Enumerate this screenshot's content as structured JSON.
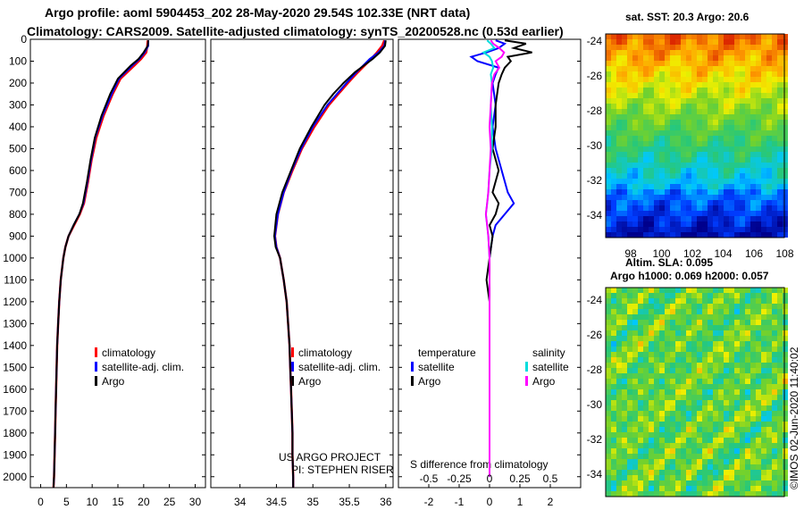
{
  "header": {
    "line1": "Argo profile: aoml 5904453_202 28-May-2020 29.54S 102.33E (NRT data)",
    "line2": "Climatology: CARS2009. Satellite-adjusted climatology: synTS_20200528.nc (0.53d earlier)"
  },
  "colors": {
    "climatology": "#ff0000",
    "satellite": "#0000ff",
    "argo": "#000000",
    "sal_satellite": "#00dddd",
    "sal_argo": "#ff00ff"
  },
  "chart_data": [
    {
      "type": "line",
      "name": "temperature-profile",
      "ylim": [
        2050,
        0
      ],
      "yticks": [
        0,
        100,
        200,
        300,
        400,
        500,
        600,
        700,
        800,
        900,
        1000,
        1100,
        1200,
        1300,
        1400,
        1500,
        1600,
        1700,
        1800,
        1900,
        2000
      ],
      "xlim": [
        -2,
        32
      ],
      "xticks": [
        0,
        5,
        10,
        15,
        20,
        25,
        30
      ],
      "depth": [
        5,
        30,
        60,
        90,
        120,
        180,
        250,
        350,
        450,
        550,
        650,
        750,
        800,
        850,
        900,
        950,
        1000,
        1100,
        1200,
        1300,
        1400,
        1500,
        1600,
        1700,
        1800,
        1900,
        2000,
        2050
      ],
      "series": [
        {
          "name": "climatology",
          "values": [
            20.8,
            20.7,
            20.5,
            19.5,
            18.2,
            15.5,
            14.0,
            12.2,
            10.8,
            9.9,
            9.2,
            8.4,
            7.6,
            6.5,
            5.4,
            4.8,
            4.4,
            3.9,
            3.6,
            3.4,
            3.2,
            3.1,
            3.0,
            2.9,
            2.8,
            2.7,
            2.6,
            2.5
          ]
        },
        {
          "name": "satellite-adj. clim.",
          "values": [
            20.9,
            20.9,
            20.2,
            19.2,
            17.8,
            15.2,
            13.8,
            12.0,
            10.6,
            9.8,
            9.1,
            8.3,
            7.5,
            6.4,
            5.4,
            4.8,
            4.4,
            3.9,
            3.6,
            3.4,
            3.2,
            3.1,
            3.0,
            2.9,
            2.8,
            2.7,
            2.6,
            2.5
          ]
        },
        {
          "name": "Argo",
          "values": [
            20.9,
            20.8,
            20.0,
            19.0,
            17.5,
            15.0,
            13.5,
            11.8,
            10.5,
            9.7,
            9.0,
            8.2,
            7.5,
            6.4,
            5.4,
            4.8,
            4.4,
            3.9,
            3.6,
            3.4,
            3.2,
            3.1,
            3.0,
            2.9,
            2.8,
            2.7,
            2.6,
            2.5
          ]
        }
      ],
      "legend": [
        "climatology",
        "satellite-adj. clim.",
        "Argo"
      ]
    },
    {
      "type": "line",
      "name": "salinity-profile",
      "ylim": [
        2050,
        0
      ],
      "xlim": [
        33.6,
        36.1
      ],
      "xticks": [
        "34",
        "34.5",
        "35",
        "35.5",
        "36"
      ],
      "depth": [
        5,
        30,
        60,
        90,
        150,
        200,
        250,
        300,
        400,
        500,
        600,
        700,
        800,
        900,
        950,
        1000,
        1100,
        1200,
        1300,
        1400,
        1500,
        1600,
        1700,
        1800,
        1900,
        2000,
        2050
      ],
      "series": [
        {
          "name": "climatology",
          "values": [
            35.98,
            35.95,
            35.88,
            35.8,
            35.62,
            35.48,
            35.35,
            35.22,
            35.02,
            34.85,
            34.72,
            34.6,
            34.52,
            34.48,
            34.5,
            34.55,
            34.6,
            34.64,
            34.66,
            34.68,
            34.69,
            34.7,
            34.71,
            34.72,
            34.72,
            34.73,
            34.73
          ]
        },
        {
          "name": "satellite-adj. clim.",
          "values": [
            35.99,
            35.98,
            35.9,
            35.78,
            35.6,
            35.46,
            35.33,
            35.2,
            35.0,
            34.84,
            34.71,
            34.6,
            34.52,
            34.48,
            34.5,
            34.55,
            34.6,
            34.64,
            34.66,
            34.68,
            34.69,
            34.7,
            34.71,
            34.72,
            34.72,
            34.73,
            34.73
          ]
        },
        {
          "name": "Argo",
          "values": [
            36.0,
            35.99,
            35.92,
            35.82,
            35.58,
            35.42,
            35.28,
            35.16,
            34.98,
            34.82,
            34.7,
            34.58,
            34.5,
            34.47,
            34.49,
            34.55,
            34.6,
            34.64,
            34.66,
            34.68,
            34.69,
            34.7,
            34.71,
            34.72,
            34.72,
            34.73,
            34.73
          ]
        }
      ],
      "legend": [
        "climatology",
        "satellite-adj. clim.",
        "Argo"
      ],
      "annotation": [
        "US ARGO PROJECT",
        "PI: STEPHEN RISER"
      ]
    },
    {
      "type": "line",
      "name": "difference-from-climatology",
      "ylim": [
        2050,
        0
      ],
      "xlim_temperature": [
        -3,
        3
      ],
      "xticks_temperature": [
        "-2",
        "-1",
        "0",
        "1",
        "2"
      ],
      "xticks_salinity": [
        "-0.5",
        "-0.25",
        "0",
        "0.25",
        "0.5"
      ],
      "xlabel": "S difference from climatology",
      "depth": [
        5,
        20,
        40,
        60,
        80,
        100,
        130,
        160,
        200,
        300,
        400,
        500,
        600,
        700,
        750,
        800,
        850,
        900,
        1000,
        1100,
        1200,
        1400,
        1600,
        1800,
        2000
      ],
      "series": [
        {
          "name": "temperature satellite",
          "values": [
            0.2,
            0.5,
            0.3,
            -0.1,
            -0.6,
            -0.4,
            0.3,
            0.2,
            0.1,
            0.2,
            0.1,
            0.2,
            0.4,
            0.6,
            0.8,
            0.5,
            0.2,
            0.1,
            0.0,
            0.0,
            0.0,
            0.0,
            0.0,
            0.0,
            0.0
          ]
        },
        {
          "name": "temperature Argo",
          "values": [
            0.5,
            1.2,
            0.8,
            1.4,
            0.6,
            0.7,
            0.5,
            0.4,
            0.3,
            0.2,
            0.2,
            0.1,
            0.3,
            0.1,
            0.3,
            0.2,
            0.0,
            0.1,
            0.0,
            -0.1,
            0.0,
            0.0,
            0.0,
            0.0,
            0.0
          ]
        },
        {
          "name": "salinity satellite",
          "values": [
            -0.02,
            0.01,
            0.04,
            -0.05,
            0.0,
            0.02,
            0.03,
            0.01,
            0.02,
            0.01,
            0.02,
            0.02,
            0.0,
            -0.01,
            -0.02,
            -0.03,
            -0.02,
            -0.01,
            0.0,
            0.0,
            0.0,
            0.0,
            0.0,
            0.0,
            0.0
          ]
        },
        {
          "name": "salinity Argo",
          "values": [
            0.01,
            0.03,
            0.08,
            0.12,
            0.1,
            0.05,
            0.08,
            0.04,
            0.02,
            0.01,
            0.0,
            0.01,
            0.0,
            -0.01,
            -0.02,
            -0.03,
            -0.02,
            -0.01,
            0.0,
            0.0,
            0.0,
            0.0,
            0.0,
            0.0,
            0.0
          ]
        }
      ],
      "legend_titles": [
        "temperature",
        "salinity"
      ],
      "legend_items": [
        "satellite",
        "Argo",
        "satellite",
        "Argo"
      ]
    },
    {
      "type": "heatmap",
      "name": "sst-map",
      "title": "sat. SST: 20.3 Argo: 20.6",
      "xticks": [
        "98",
        "100",
        "102",
        "104",
        "106",
        "108"
      ],
      "yticks": [
        "-24",
        "-26",
        "-28",
        "-30",
        "-32",
        "-34"
      ]
    },
    {
      "type": "heatmap",
      "name": "sla-map",
      "title1": "Altim. SLA: 0.095",
      "title2": "Argo h1000: 0.069 h2000: 0.057",
      "yticks": [
        "-24",
        "-26",
        "-28",
        "-30",
        "-32",
        "-34"
      ]
    }
  ],
  "footer": {
    "stamp": "©IMOS 02-Jun-2020 11:40:02"
  }
}
